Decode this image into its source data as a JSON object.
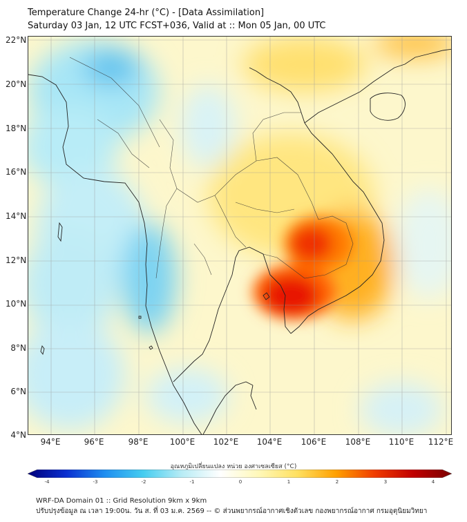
{
  "header": {
    "title": "Temperature Change 24-hr (°C) - [Data Assimilation]",
    "subtitle": "Saturday 03 Jan, 12 UTC FCST+036, Valid at :: Mon 05 Jan, 00 UTC"
  },
  "map": {
    "lat_labels": [
      "22°N",
      "20°N",
      "18°N",
      "16°N",
      "14°N",
      "12°N",
      "10°N",
      "8°N",
      "6°N",
      "4°N"
    ],
    "lon_labels": [
      "94°E",
      "96°E",
      "98°E",
      "100°E",
      "102°E",
      "104°E",
      "106°E",
      "108°E",
      "110°E",
      "112°E"
    ]
  },
  "colorbar": {
    "title": "อุณหภูมิเปลี่ยนแปลง หน่วย องศาเซลเซียส (°C)",
    "ticks": [
      "-4",
      "-3",
      "-2",
      "-1",
      "0",
      "1",
      "2",
      "3",
      "4"
    ],
    "colors": [
      "#00007a",
      "#0a2fd0",
      "#1e8ef0",
      "#45cdf0",
      "#b8ecf5",
      "#ffffff",
      "#fff8b8",
      "#ffe060",
      "#ffa000",
      "#f03c00",
      "#c00000",
      "#7a0000"
    ]
  },
  "footer": {
    "line1": "WRF-DA Domain 01 :: Grid Resolution 9km x 9km",
    "line2": "ปรับปรุงข้อมูล ณ เวลา 19:00น. วัน ส. ที่ 03 ม.ค. 2569 -- © ส่วนพยากรณ์อากาศเชิงตัวเลข กองพยากรณ์อากาศ กรมอุตุนิยมวิทยา"
  }
}
